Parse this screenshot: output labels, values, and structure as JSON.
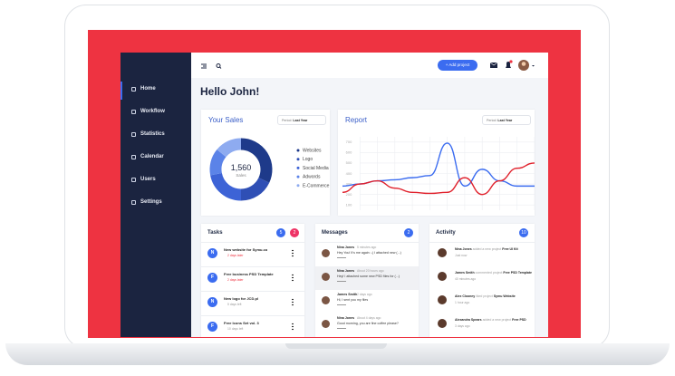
{
  "sidebar": {
    "menu": [
      "Home",
      "Workflow",
      "Statistics",
      "Calendar",
      "Users",
      "Settings"
    ]
  },
  "topbar": {
    "add_button": "+ Add project"
  },
  "greeting": "Hello John!",
  "sales": {
    "title": "Your Sales",
    "period_label": "Period:",
    "period": "Last Year",
    "center_value": "1,560",
    "center_label": "Sales"
  },
  "report": {
    "title": "Report",
    "period_label": "Period:",
    "period": "Last Year"
  },
  "chart_data": [
    {
      "type": "pie",
      "categories": [
        "Websites",
        "Logo",
        "Social Media",
        "Adwords",
        "E-Commerce"
      ],
      "values": [
        32,
        18,
        22,
        14,
        14
      ],
      "colors": [
        "#1e3a8a",
        "#2f4fb5",
        "#3d63d6",
        "#5b83e8",
        "#8eabf0"
      ]
    },
    {
      "type": "line",
      "ylim": [
        50,
        750
      ],
      "yticks": [
        100,
        200,
        300,
        400,
        500,
        600,
        700
      ],
      "grid": true,
      "series": [
        {
          "color": "#3b6cf0",
          "values": [
            280,
            300,
            330,
            340,
            360,
            380,
            690,
            280,
            440,
            330,
            280,
            280
          ]
        },
        {
          "color": "#e0202b",
          "values": [
            220,
            300,
            330,
            260,
            220,
            210,
            220,
            360,
            200,
            330,
            450,
            500
          ]
        }
      ]
    }
  ],
  "tasks": {
    "title": "Tasks",
    "badges": [
      "5",
      "2"
    ],
    "items": [
      {
        "initial": "N",
        "title": "New website for Symu.co",
        "due": "2 days later"
      },
      {
        "initial": "F",
        "title": "Free business PSD Template",
        "due": "2 days later"
      },
      {
        "initial": "N",
        "title": "New logo for JCD.pl",
        "due": "5 days left"
      },
      {
        "initial": "F",
        "title": "Free Icons Set vol. 3",
        "due": "10 days left"
      }
    ]
  },
  "messages": {
    "title": "Messages",
    "badge": "2",
    "items": [
      {
        "name": "Nina Jones",
        "time": "5 minutes ago",
        "text": "Hey You! It's me again :-) I attached new (...)"
      },
      {
        "name": "Nina Jones",
        "time": "About 20 hours ago",
        "text": "Hey! I attached some new PSD files for (...)"
      },
      {
        "name": "James Smith",
        "time": "2 days ago",
        "text": "Hi, I sent you my files"
      },
      {
        "name": "Nina Jones",
        "time": "About 4 days ago",
        "text": "Good morning, you are fine coffee please?"
      }
    ]
  },
  "activity": {
    "title": "Activity",
    "badge": "10",
    "items": [
      {
        "name": "Nina Jones",
        "action": "added a new project",
        "target": "Free UI Kit",
        "time": "Just now"
      },
      {
        "name": "James Smith",
        "action": "commented project",
        "target": "Free PSD Template",
        "time": "40 minutes ago"
      },
      {
        "name": "Alex Clooney",
        "action": "liked project",
        "target": "Symu Website",
        "time": "1 hour ago"
      },
      {
        "name": "Alexandra Spears",
        "action": "added a new project",
        "target": "Free PSD",
        "time": "3 days ago"
      }
    ]
  }
}
